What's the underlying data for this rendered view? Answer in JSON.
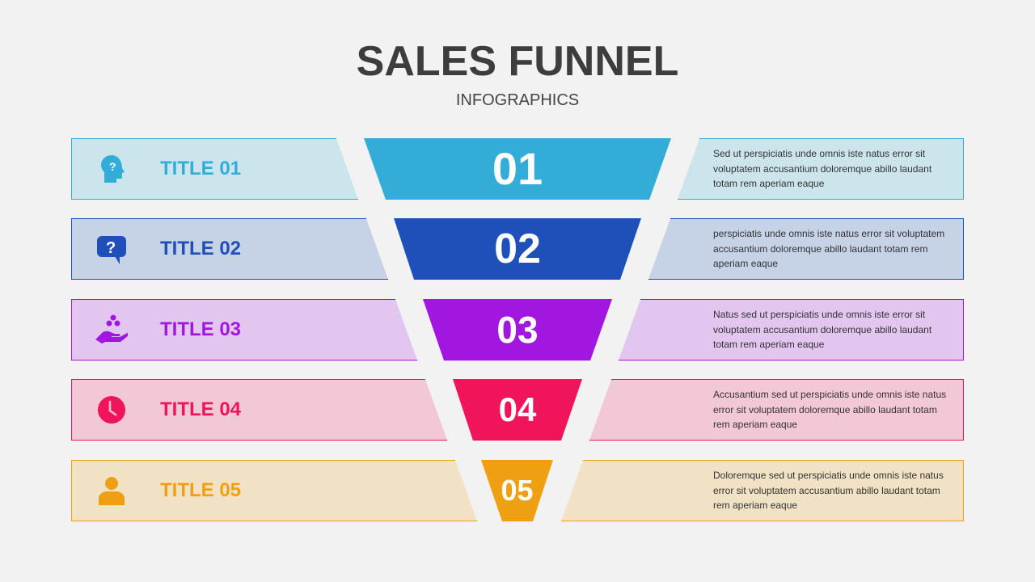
{
  "header": {
    "title": "SALES FUNNEL",
    "subtitle": "INFOGRAPHICS"
  },
  "rows": [
    {
      "title": "TITLE 01",
      "number": "01",
      "icon": "head-question-icon",
      "color": "#34acd8",
      "light": "#cce5ed",
      "description": "Sed ut perspiciatis unde omnis iste natus error sit voluptatem accusantium doloremque abillo laudant totam rem aperiam eaque"
    },
    {
      "title": "TITLE 02",
      "number": "02",
      "icon": "speech-bubble-question-icon",
      "color": "#1f4fb8",
      "light": "#c6d2e6",
      "description": "perspiciatis unde omnis iste natus error sit voluptatem accusantium doloremque abillo laudant totam rem aperiam eaque"
    },
    {
      "title": "TITLE 03",
      "number": "03",
      "icon": "hand-coins-icon",
      "color": "#a117e0",
      "light": "#e3c6ef",
      "description": "Natus sed ut perspiciatis unde omnis iste error sit voluptatem accusantium doloremque abillo laudant totam rem aperiam eaque"
    },
    {
      "title": "TITLE 04",
      "number": "04",
      "icon": "clock-icon",
      "color": "#f0145a",
      "light": "#f2c7d6",
      "description": "Accusantium sed ut perspiciatis unde omnis iste natus error sit voluptatem doloremque abillo laudant totam rem aperiam eaque"
    },
    {
      "title": "TITLE 05",
      "number": "05",
      "icon": "user-icon",
      "color": "#ef9f12",
      "light": "#f1e2c5",
      "description": "Doloremque sed ut perspiciatis unde omnis iste natus error sit voluptatem accusantium abillo laudant totam rem aperiam eaque"
    }
  ]
}
